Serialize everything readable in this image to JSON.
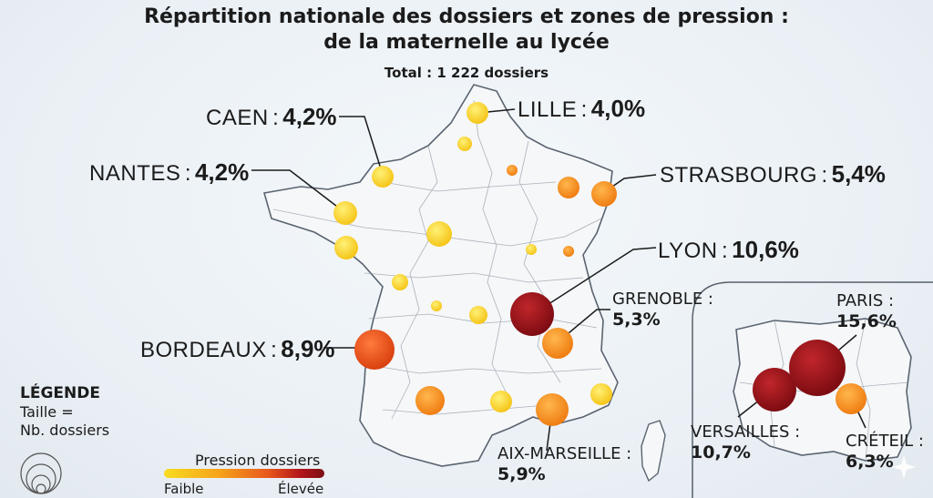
{
  "title": {
    "line1": "Répartition nationale des dossiers et zones de pression :",
    "line2": "de la maternelle au lycée",
    "total": "Total : 1 222 dossiers"
  },
  "labels": {
    "caen": {
      "city": "CAEN",
      "pct": "4,2%"
    },
    "lille": {
      "city": "LILLE",
      "pct": "4,0%"
    },
    "nantes": {
      "city": "NANTES",
      "pct": "4,2%"
    },
    "strasbourg": {
      "city": "STRASBOURG",
      "pct": "5,4%"
    },
    "lyon": {
      "city": "LYON",
      "pct": "10,6%"
    },
    "grenoble": {
      "city": "GRENOBLE :",
      "pct": "5,3%"
    },
    "bordeaux": {
      "city": "BORDEAUX",
      "pct": "8,9%"
    },
    "aix": {
      "city": "AIX-MARSEILLE :",
      "pct": "5,9%"
    },
    "paris": {
      "city": "PARIS :",
      "pct": "15,6%"
    },
    "versailles": {
      "city": "VERSAILLES :",
      "pct": "10,7%"
    },
    "creteil": {
      "city": "CRÉTEIL :",
      "pct": "6,3%"
    }
  },
  "separator": ":",
  "legend": {
    "title": "LÉGENDE",
    "size_line1": "Taille =",
    "size_line2": "Nb. dossiers",
    "gradient_title": "Pression dossiers",
    "low": "Faible",
    "high": "Élevée"
  },
  "colors": {
    "low": "#f8dc20",
    "mid": "#f39a1c",
    "high": "#e8571c",
    "very_high": "#8e0f16"
  }
}
